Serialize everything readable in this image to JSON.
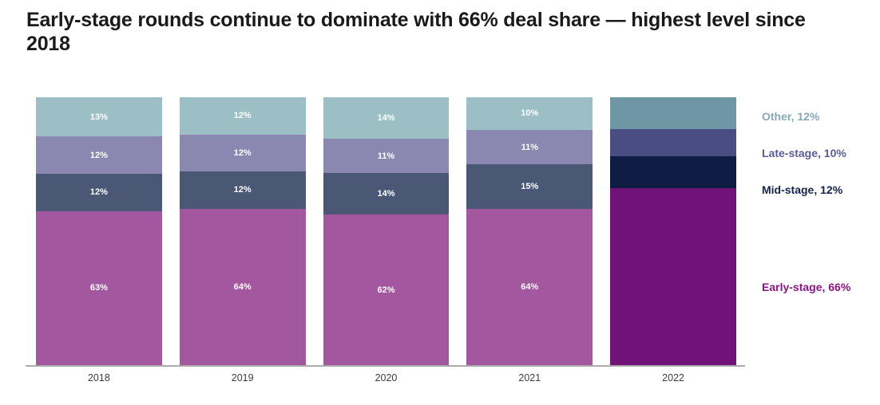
{
  "title": "Early-stage rounds continue to dominate with 66% deal share — highest level since 2018",
  "colors": {
    "background": "#ffffff",
    "title_text": "#1a1a1a",
    "axis_line": "#ababab",
    "xlabel_text": "#3c3c3c",
    "segment_label_text": "#ffffff"
  },
  "chart_data": {
    "type": "bar",
    "stacked": true,
    "orientation": "vertical",
    "stack_order": "top-to-bottom",
    "unit": "%",
    "label_format": "{value}%",
    "title": "Early-stage rounds continue to dominate with 66% deal share — highest level since 2018",
    "xlabel": "",
    "ylabel": "",
    "ylim": [
      0,
      100
    ],
    "grid": false,
    "y_axis_shown": false,
    "x_axis_line_shown": true,
    "categories": [
      "2018",
      "2019",
      "2020",
      "2021",
      "2022"
    ],
    "series": [
      {
        "name": "Other",
        "values": [
          13,
          12,
          14,
          10,
          12
        ],
        "color": "#9cbfc6",
        "highlight_color": "#6f96a4"
      },
      {
        "name": "Late-stage",
        "values": [
          12,
          12,
          11,
          11,
          10
        ],
        "color": "#8a87b0",
        "highlight_color": "#4a4d82"
      },
      {
        "name": "Mid-stage",
        "values": [
          12,
          12,
          14,
          15,
          12
        ],
        "color": "#4a5876",
        "highlight_color": "#0f1c44"
      },
      {
        "name": "Early-stage",
        "values": [
          63,
          64,
          62,
          64,
          66
        ],
        "color": "#a3579e",
        "highlight_color": "#701277"
      }
    ],
    "highlight_category": "2022",
    "data_labels_hidden_for": [
      "2022"
    ],
    "legend": {
      "position": "right",
      "items": [
        {
          "label": "Other, 12%",
          "color": "#86a9b5"
        },
        {
          "label": "Late-stage, 10%",
          "color": "#5a5c99"
        },
        {
          "label": "Mid-stage, 12%",
          "color": "#15234d"
        },
        {
          "label": "Early-stage, 66%",
          "color": "#8a1480"
        }
      ]
    }
  }
}
